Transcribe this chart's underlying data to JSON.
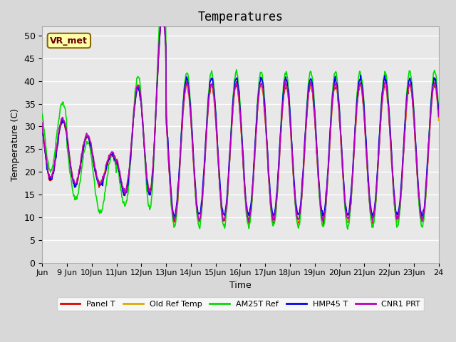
{
  "title": "Temperatures",
  "xlabel": "Time",
  "ylabel": "Temperature (C)",
  "ylim": [
    0,
    52
  ],
  "yticks": [
    0,
    5,
    10,
    15,
    20,
    25,
    30,
    35,
    40,
    45,
    50
  ],
  "xtick_labels": [
    "Jun",
    "9 Jun",
    "10Jun",
    "11Jun",
    "12Jun",
    "13Jun",
    "14Jun",
    "15Jun",
    "16Jun",
    "17Jun",
    "18Jun",
    "19Jun",
    "20Jun",
    "21Jun",
    "22Jun",
    "23Jun",
    "24"
  ],
  "annotation_text": "VR_met",
  "bg_color": "#e8e8e8",
  "grid_color": "#ffffff",
  "line_colors": [
    "#dd0000",
    "#ddaa00",
    "#00dd00",
    "#0000ee",
    "#bb00bb"
  ],
  "line_labels": [
    "Panel T",
    "Old Ref Temp",
    "AM25T Ref",
    "HMP45 T",
    "CNR1 PRT"
  ],
  "n_days": 16,
  "points_per_day": 48
}
